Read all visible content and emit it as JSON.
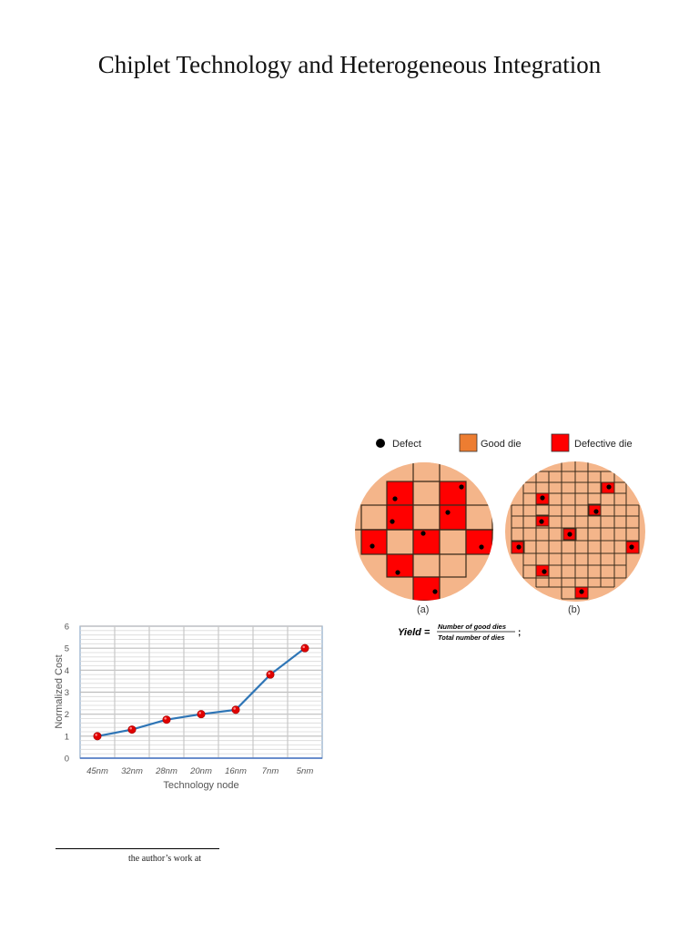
{
  "document": {
    "title": "Chiplet Technology and Heterogeneous Integration",
    "footnote": "the author’s work at"
  },
  "figure_wafer": {
    "legend": {
      "defect": "Defect",
      "good_die": "Good die",
      "defective_die": "Defective die"
    },
    "colors": {
      "wafer": "#F4B58A",
      "good_die": "#F4B58A",
      "good_die_legend": "#ED7D31",
      "defective_die": "#FF0000",
      "defect": "#000000"
    },
    "labels": {
      "a": "(a)",
      "b": "(b)"
    },
    "formula": {
      "lhs": "Yield =",
      "numerator": "Number of good dies",
      "denominator": "Total number of dies",
      "suffix": ";"
    }
  },
  "chart_data": {
    "type": "line",
    "title": "",
    "xlabel": "Technology node",
    "ylabel": "Normalized Cost",
    "categories": [
      "45nm",
      "32nm",
      "28nm",
      "20nm",
      "16nm",
      "7nm",
      "5nm"
    ],
    "values": [
      1.0,
      1.3,
      1.75,
      2.0,
      2.2,
      3.8,
      5.0
    ],
    "ylim": [
      0,
      6
    ],
    "yticks": [
      0,
      1,
      2,
      3,
      4,
      5,
      6
    ],
    "grid": true,
    "line_color": "#2E75B6",
    "marker_color": "#E00000",
    "legend": null
  }
}
